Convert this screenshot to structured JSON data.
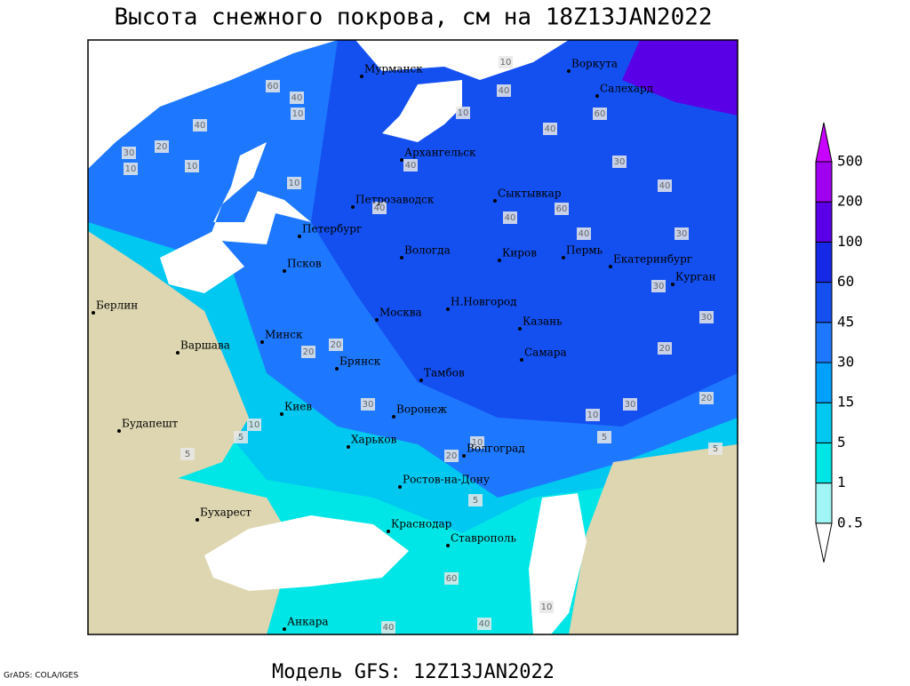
{
  "title": "Высота снежного покрова, см на 18Z13JAN2022",
  "subtitle": "Модель GFS: 12Z13JAN2022",
  "credit": "GrADS: COLA/IGES",
  "colorbar": {
    "levels": [
      0.5,
      1,
      5,
      15,
      30,
      45,
      60,
      100,
      200,
      500
    ],
    "colors": [
      "#ffffff",
      "#a0f5f5",
      "#00e6e6",
      "#00c8f0",
      "#00a0ff",
      "#1e78ff",
      "#1450f0",
      "#1428e6",
      "#5a00e6",
      "#a000f0",
      "#c800ff"
    ]
  },
  "cities": [
    "Мурманск",
    "Воркута",
    "Салехард",
    "Архангельск",
    "Сыктывкар",
    "Петрозаводск",
    "Петербург",
    "Вологда",
    "Киров",
    "Пермь",
    "Екатеринбург",
    "Курган",
    "Псков",
    "Берлин",
    "Н.Новгород",
    "Москва",
    "Казань",
    "Минск",
    "Варшава",
    "Самара",
    "Брянск",
    "Тамбов",
    "Киев",
    "Воронеж",
    "Будапешт",
    "Харьков",
    "Волгоград",
    "Ростов-на-Дону",
    "Бухарест",
    "Краснодар",
    "Ставрополь",
    "Анкара"
  ],
  "contour_labels": [
    60,
    40,
    10,
    40,
    20,
    10,
    30,
    10,
    10,
    40,
    40,
    40,
    60,
    40,
    40,
    30,
    60,
    40,
    10,
    40,
    10,
    30,
    30,
    30,
    20,
    30,
    20,
    10,
    20,
    30,
    20,
    10,
    5,
    5,
    5,
    5,
    20,
    10,
    5,
    60,
    40,
    40,
    10
  ]
}
